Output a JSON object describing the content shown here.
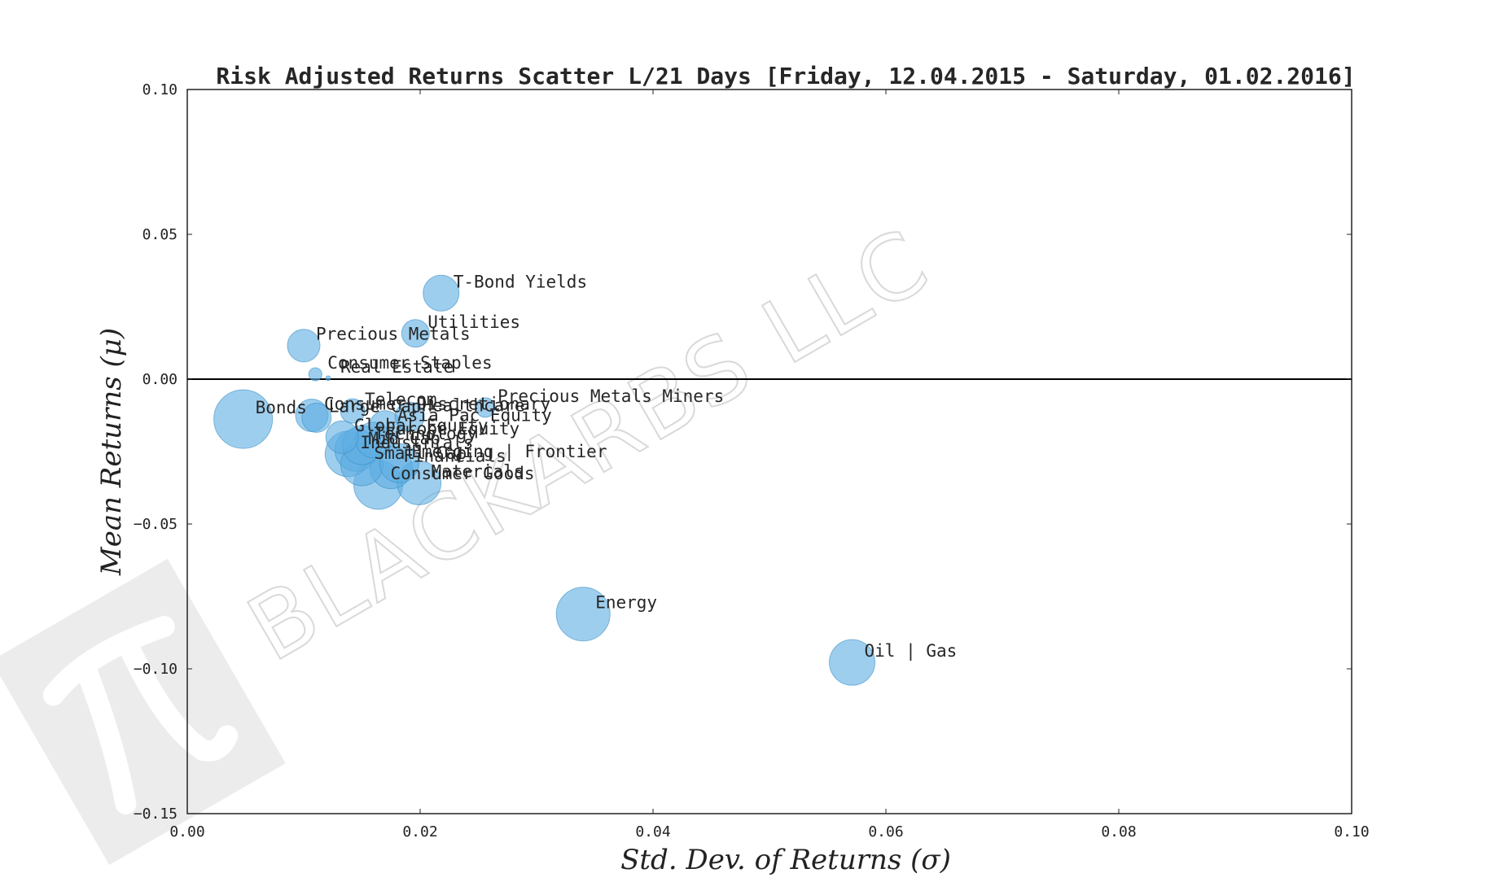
{
  "watermark": {
    "text": "BLACKARBS LLC",
    "logo": "pi-logo"
  },
  "chart_data": {
    "type": "scatter",
    "title": "Risk Adjusted Returns Scatter L/21 Days [Friday, 12.04.2015 - Saturday, 01.02.2016]",
    "xlabel": "Std.  Dev.  of  Returns     (σ)",
    "ylabel": "Mean  Returns     (μ)",
    "xlim": [
      0.0,
      0.1
    ],
    "ylim": [
      -0.15,
      0.1
    ],
    "x_ticks": [
      "0.00",
      "0.02",
      "0.04",
      "0.06",
      "0.08",
      "0.10"
    ],
    "x_tick_values": [
      0.0,
      0.02,
      0.04,
      0.06,
      0.08,
      0.1
    ],
    "y_ticks": [
      "0.10",
      "0.05",
      "0.00",
      "−0.05",
      "−0.10",
      "−0.15"
    ],
    "y_tick_values": [
      0.1,
      0.05,
      0.0,
      -0.05,
      -0.1,
      -0.15
    ],
    "zero_line": 0.0,
    "grid": false,
    "marker_color": "#5dade2",
    "points": [
      {
        "label": "T-Bond Yields",
        "x": 0.0218,
        "y": 0.0297,
        "size": 22
      },
      {
        "label": "Utilities",
        "x": 0.0196,
        "y": 0.0158,
        "size": 17
      },
      {
        "label": "Precious Metals",
        "x": 0.01,
        "y": 0.0116,
        "size": 20
      },
      {
        "label": "Consumer Staples",
        "x": 0.011,
        "y": 0.0017,
        "size": 8
      },
      {
        "label": "Real Estate",
        "x": 0.0121,
        "y": 0.0003,
        "size": 3
      },
      {
        "label": "Precious Metals Miners",
        "x": 0.0256,
        "y": -0.0098,
        "size": 12
      },
      {
        "label": "Bonds",
        "x": 0.0048,
        "y": -0.0138,
        "size": 36
      },
      {
        "label": "Consumer Discretionary",
        "x": 0.0107,
        "y": -0.0125,
        "size": 20
      },
      {
        "label": "Large Cap",
        "x": 0.0111,
        "y": -0.0133,
        "size": 18
      },
      {
        "label": "Telecom",
        "x": 0.0142,
        "y": -0.011,
        "size": 15
      },
      {
        "label": "Healthcare",
        "x": 0.0191,
        "y": -0.013,
        "size": 18
      },
      {
        "label": "Asia Pac Equity",
        "x": 0.017,
        "y": -0.0165,
        "size": 20
      },
      {
        "label": "Global Equity",
        "x": 0.0133,
        "y": -0.02,
        "size": 20
      },
      {
        "label": "Europe Equity",
        "x": 0.016,
        "y": -0.021,
        "size": 22
      },
      {
        "label": "Technology",
        "x": 0.015,
        "y": -0.0228,
        "size": 24
      },
      {
        "label": "Mid Cap",
        "x": 0.0145,
        "y": -0.0245,
        "size": 26
      },
      {
        "label": "Industrials",
        "x": 0.0138,
        "y": -0.0258,
        "size": 28
      },
      {
        "label": "Emerging | Frontier",
        "x": 0.0182,
        "y": -0.029,
        "size": 24
      },
      {
        "label": "Financials",
        "x": 0.0175,
        "y": -0.0305,
        "size": 26
      },
      {
        "label": "Small Cap",
        "x": 0.015,
        "y": -0.0295,
        "size": 26
      },
      {
        "label": "Materials",
        "x": 0.0199,
        "y": -0.0358,
        "size": 27
      },
      {
        "label": "Consumer Goods",
        "x": 0.0164,
        "y": -0.0365,
        "size": 30
      },
      {
        "label": "Energy",
        "x": 0.034,
        "y": -0.0811,
        "size": 33
      },
      {
        "label": "Oil | Gas",
        "x": 0.0571,
        "y": -0.0978,
        "size": 28
      }
    ]
  }
}
